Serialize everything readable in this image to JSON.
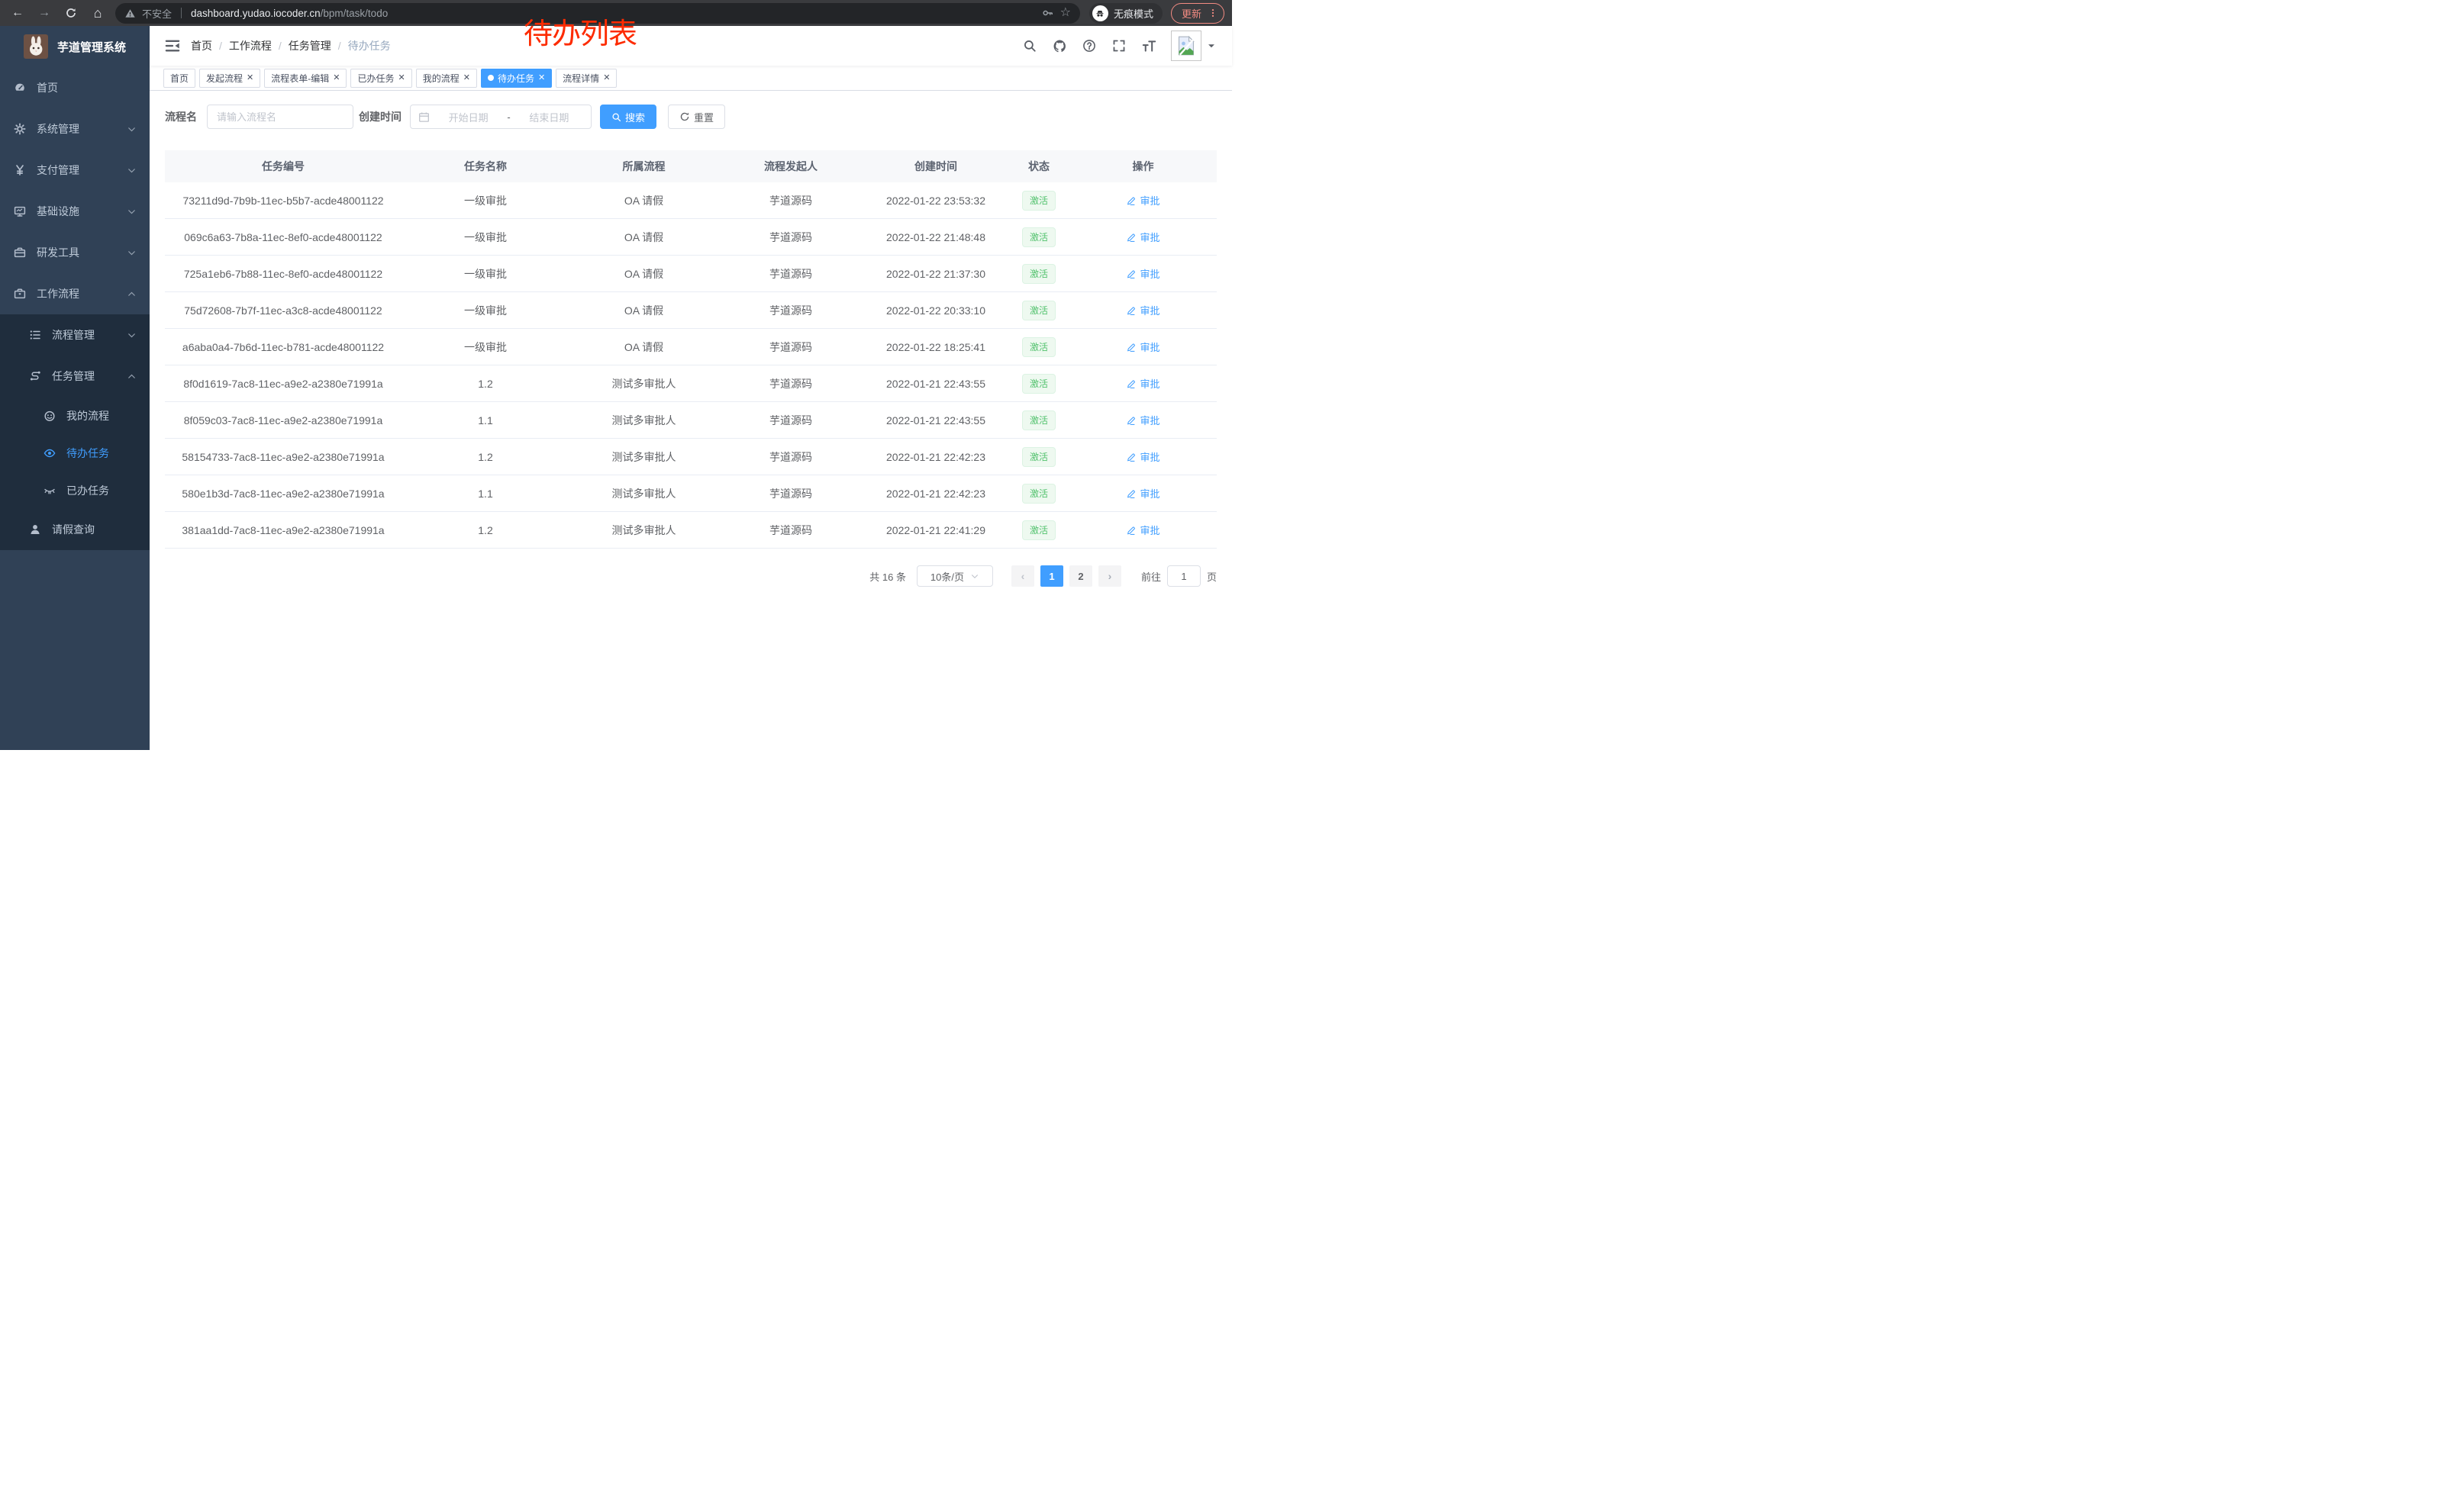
{
  "browser": {
    "security_label": "不安全",
    "url_host": "dashboard.yudao.iocoder.cn",
    "url_path": "/bpm/task/todo",
    "incognito_label": "无痕模式",
    "update_label": "更新"
  },
  "annotation": "待办列表",
  "colors": {
    "primary": "#409eff",
    "success": "#53c26e",
    "sidebar": "#304156",
    "submenu": "#1f2d3d",
    "annotation_red": "#fd2b01"
  },
  "sidebar": {
    "title": "芋道管理系统",
    "menu": [
      {
        "key": "home",
        "label": "首页",
        "icon": "dashboard-icon",
        "level": 1
      },
      {
        "key": "system",
        "label": "系统管理",
        "icon": "gear-icon",
        "level": 1,
        "chevron": "down"
      },
      {
        "key": "payment",
        "label": "支付管理",
        "icon": "yen-icon",
        "level": 1,
        "chevron": "down"
      },
      {
        "key": "infra",
        "label": "基础设施",
        "icon": "monitor-icon",
        "level": 1,
        "chevron": "down"
      },
      {
        "key": "devtools",
        "label": "研发工具",
        "icon": "toolbox-icon",
        "level": 1,
        "chevron": "down"
      },
      {
        "key": "workflow",
        "label": "工作流程",
        "icon": "briefcase-icon",
        "level": 1,
        "chevron": "up"
      },
      {
        "key": "process-mgmt",
        "label": "流程管理",
        "icon": "list-icon",
        "level": 2,
        "chevron": "down",
        "submenu": true
      },
      {
        "key": "task-mgmt",
        "label": "任务管理",
        "icon": "flow-icon",
        "level": 2,
        "chevron": "up",
        "submenu": true
      },
      {
        "key": "my-process",
        "label": "我的流程",
        "icon": "face-icon",
        "level": 3,
        "submenu": true
      },
      {
        "key": "todo-task",
        "label": "待办任务",
        "icon": "eye-icon",
        "level": 3,
        "submenu": true,
        "active": true
      },
      {
        "key": "done-task",
        "label": "已办任务",
        "icon": "eye-closed-icon",
        "level": 3,
        "submenu": true
      },
      {
        "key": "leave-query",
        "label": "请假查询",
        "icon": "user-icon",
        "level": 2,
        "submenu": true
      }
    ]
  },
  "header": {
    "breadcrumb": [
      "首页",
      "工作流程",
      "任务管理",
      "待办任务"
    ]
  },
  "tags": [
    {
      "label": "首页",
      "closable": false
    },
    {
      "label": "发起流程",
      "closable": true
    },
    {
      "label": "流程表单-编辑",
      "closable": true
    },
    {
      "label": "已办任务",
      "closable": true
    },
    {
      "label": "我的流程",
      "closable": true
    },
    {
      "label": "待办任务",
      "closable": true,
      "active": true
    },
    {
      "label": "流程详情",
      "closable": true
    }
  ],
  "filters": {
    "name_label": "流程名",
    "name_placeholder": "请输入流程名",
    "time_label": "创建时间",
    "start_placeholder": "开始日期",
    "range_separator": "-",
    "end_placeholder": "结束日期",
    "search_label": "搜索",
    "reset_label": "重置"
  },
  "table": {
    "columns": [
      "任务编号",
      "任务名称",
      "所属流程",
      "流程发起人",
      "创建时间",
      "状态",
      "操作"
    ],
    "status_label": "激活",
    "action_label": "审批",
    "rows": [
      {
        "id": "73211d9d-7b9b-11ec-b5b7-acde48001122",
        "name": "一级审批",
        "process": "OA 请假",
        "initiator": "芋道源码",
        "created": "2022-01-22 23:53:32"
      },
      {
        "id": "069c6a63-7b8a-11ec-8ef0-acde48001122",
        "name": "一级审批",
        "process": "OA 请假",
        "initiator": "芋道源码",
        "created": "2022-01-22 21:48:48"
      },
      {
        "id": "725a1eb6-7b88-11ec-8ef0-acde48001122",
        "name": "一级审批",
        "process": "OA 请假",
        "initiator": "芋道源码",
        "created": "2022-01-22 21:37:30"
      },
      {
        "id": "75d72608-7b7f-11ec-a3c8-acde48001122",
        "name": "一级审批",
        "process": "OA 请假",
        "initiator": "芋道源码",
        "created": "2022-01-22 20:33:10"
      },
      {
        "id": "a6aba0a4-7b6d-11ec-b781-acde48001122",
        "name": "一级审批",
        "process": "OA 请假",
        "initiator": "芋道源码",
        "created": "2022-01-22 18:25:41"
      },
      {
        "id": "8f0d1619-7ac8-11ec-a9e2-a2380e71991a",
        "name": "1.2",
        "process": "测试多审批人",
        "initiator": "芋道源码",
        "created": "2022-01-21 22:43:55"
      },
      {
        "id": "8f059c03-7ac8-11ec-a9e2-a2380e71991a",
        "name": "1.1",
        "process": "测试多审批人",
        "initiator": "芋道源码",
        "created": "2022-01-21 22:43:55"
      },
      {
        "id": "58154733-7ac8-11ec-a9e2-a2380e71991a",
        "name": "1.2",
        "process": "测试多审批人",
        "initiator": "芋道源码",
        "created": "2022-01-21 22:42:23"
      },
      {
        "id": "580e1b3d-7ac8-11ec-a9e2-a2380e71991a",
        "name": "1.1",
        "process": "测试多审批人",
        "initiator": "芋道源码",
        "created": "2022-01-21 22:42:23"
      },
      {
        "id": "381aa1dd-7ac8-11ec-a9e2-a2380e71991a",
        "name": "1.2",
        "process": "测试多审批人",
        "initiator": "芋道源码",
        "created": "2022-01-21 22:41:29"
      }
    ]
  },
  "pagination": {
    "total": "共 16 条",
    "page_size": "10条/页",
    "pages": [
      "1",
      "2"
    ],
    "current": "1",
    "prev_icon": "‹",
    "next_icon": "›",
    "goto_label": "前往",
    "goto_value": "1",
    "goto_unit": "页"
  }
}
